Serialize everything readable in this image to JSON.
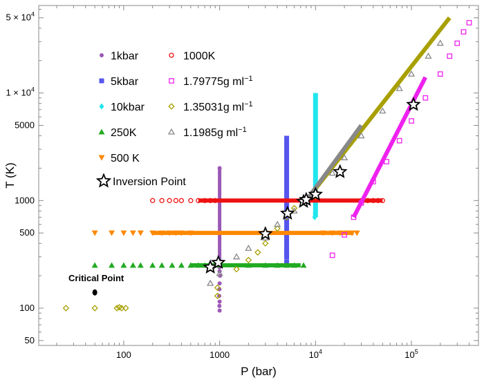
{
  "chart_data": {
    "type": "scatter",
    "xlabel": "P (bar)",
    "ylabel": "T (K)",
    "xscale": "log",
    "yscale": "log",
    "xlim": [
      13,
      500000
    ],
    "ylim": [
      45,
      65000
    ],
    "x_ticks": [
      {
        "value": 100,
        "label": "100"
      },
      {
        "value": 1000,
        "label": "1000"
      },
      {
        "value": 10000,
        "base": "10",
        "exp": "4"
      },
      {
        "value": 100000,
        "base": "10",
        "exp": "5"
      }
    ],
    "y_ticks": [
      {
        "value": 50,
        "label": "50"
      },
      {
        "value": 100,
        "label": "100"
      },
      {
        "value": 500,
        "label": "500"
      },
      {
        "value": 1000,
        "label": "1000"
      },
      {
        "value": 5000,
        "label": "5000"
      },
      {
        "value": 10000,
        "label": "1 × 10",
        "exp": "4"
      },
      {
        "value": 50000,
        "label": "5 × 10",
        "exp": "4"
      }
    ],
    "legend": {
      "placement": "top-left",
      "columns": 2
    },
    "series": [
      {
        "name": "1kbar",
        "color": "#9b59b6",
        "marker": "circle",
        "legend_col": 0,
        "points": [
          [
            1000,
            95
          ],
          [
            995,
            105
          ],
          [
            1000,
            115
          ],
          [
            990,
            130
          ],
          [
            995,
            150
          ],
          [
            1000,
            170
          ],
          [
            1010,
            200
          ],
          [
            1000,
            220
          ],
          [
            995,
            240
          ],
          [
            1000,
            260
          ],
          [
            1000,
            2000
          ]
        ],
        "vline": {
          "x": 1000,
          "y0": 240,
          "y1": 2000
        }
      },
      {
        "name": "5kbar",
        "color": "#5555ee",
        "marker": "square",
        "legend_col": 0,
        "points": [
          [
            5000,
            270
          ],
          [
            5000,
            300
          ],
          [
            5000,
            330
          ]
        ],
        "vline": {
          "x": 5000,
          "y0": 300,
          "y1": 4000
        }
      },
      {
        "name": "10kbar",
        "color": "#22e6ee",
        "marker": "diamond",
        "legend_col": 0,
        "points": [
          [
            9800,
            700
          ],
          [
            9900,
            750
          ]
        ],
        "vline": {
          "x": 10000,
          "y0": 700,
          "y1": 10000
        }
      },
      {
        "name": "250K",
        "color": "#22aa22",
        "marker": "triangle",
        "legend_col": 0,
        "points": [
          [
            50,
            250
          ],
          [
            75,
            250
          ],
          [
            100,
            250
          ],
          [
            125,
            250
          ],
          [
            150,
            250
          ],
          [
            200,
            250
          ],
          [
            250,
            250
          ],
          [
            320,
            250
          ],
          [
            400,
            250
          ],
          [
            500,
            250
          ],
          [
            600,
            250
          ],
          [
            700,
            250
          ],
          [
            800,
            250
          ],
          [
            2000,
            250
          ],
          [
            3000,
            250
          ],
          [
            4000,
            250
          ],
          [
            5000,
            250
          ],
          [
            6000,
            250
          ],
          [
            7500,
            250
          ]
        ],
        "hline": {
          "y": 250,
          "x0": 500,
          "x1": 7000
        }
      },
      {
        "name": "500 K",
        "color": "#ff8800",
        "marker": "triangle-down",
        "legend_col": 0,
        "points": [
          [
            50,
            500
          ],
          [
            75,
            500
          ],
          [
            100,
            500
          ],
          [
            125,
            500
          ],
          [
            150,
            500
          ],
          [
            200,
            500
          ],
          [
            250,
            500
          ],
          [
            300,
            500
          ],
          [
            350,
            500
          ],
          [
            400,
            500
          ],
          [
            500,
            500
          ],
          [
            12000,
            500
          ],
          [
            15000,
            500
          ],
          [
            18000,
            500
          ],
          [
            21000,
            500
          ],
          [
            24000,
            500
          ],
          [
            27000,
            500
          ]
        ],
        "hline": {
          "y": 500,
          "x0": 200,
          "x1": 25000
        }
      },
      {
        "name": "1000K",
        "color": "#ee1111",
        "marker": "circle-open",
        "legend_col": 1,
        "points": [
          [
            200,
            1000
          ],
          [
            250,
            1000
          ],
          [
            300,
            1000
          ],
          [
            350,
            1000
          ],
          [
            400,
            1000
          ],
          [
            500,
            1000
          ],
          [
            600,
            1000
          ],
          [
            700,
            1000
          ],
          [
            800,
            1000
          ],
          [
            900,
            1000
          ],
          [
            30000,
            1000
          ],
          [
            35000,
            1000
          ],
          [
            40000,
            1000
          ],
          [
            45000,
            1000
          ],
          [
            50000,
            1000
          ]
        ],
        "hline": {
          "y": 1000,
          "x0": 600,
          "x1": 50000
        }
      },
      {
        "name": "1.79775g ml⁻¹",
        "color": "#ee22ee",
        "marker": "square-open",
        "legend_col": 1,
        "points": [
          [
            15000,
            310
          ],
          [
            20000,
            480
          ],
          [
            25000,
            700
          ],
          [
            30000,
            950
          ],
          [
            40000,
            1500
          ],
          [
            55000,
            2300
          ],
          [
            75000,
            3600
          ],
          [
            100000,
            5500
          ],
          [
            140000,
            9000
          ],
          [
            200000,
            15000
          ],
          [
            250000,
            22000
          ],
          [
            300000,
            29000
          ],
          [
            350000,
            37000
          ],
          [
            400000,
            45000
          ]
        ],
        "trend": {
          "x0": 25000,
          "y0": 700,
          "x1": 140000,
          "y1": 14000
        }
      },
      {
        "name": "1.35031g ml⁻¹",
        "color": "#a8a000",
        "marker": "diamond-open",
        "legend_col": 1,
        "points": [
          [
            25,
            100
          ],
          [
            50,
            100
          ],
          [
            85,
            100
          ],
          [
            90,
            102
          ],
          [
            95,
            100
          ],
          [
            105,
            100
          ],
          [
            950,
            130
          ],
          [
            950,
            155
          ],
          [
            1500,
            230
          ],
          [
            2000,
            280
          ],
          [
            2500,
            330
          ],
          [
            3000,
            400
          ],
          [
            4000,
            550
          ],
          [
            5000,
            700
          ],
          [
            6000,
            850
          ],
          [
            8000,
            1000
          ],
          [
            10000,
            1100
          ]
        ],
        "trend": {
          "x0": 8000,
          "y0": 1000,
          "x1": 250000,
          "y1": 50000
        }
      },
      {
        "name": "1.1985g ml⁻¹",
        "color": "#888888",
        "marker": "triangle-open",
        "legend_col": 1,
        "points": [
          [
            800,
            170
          ],
          [
            1000,
            210
          ],
          [
            1500,
            300
          ],
          [
            2000,
            360
          ],
          [
            3000,
            450
          ],
          [
            4000,
            600
          ],
          [
            6000,
            800
          ],
          [
            8000,
            1000
          ],
          [
            10000,
            1250
          ],
          [
            15000,
            1800
          ],
          [
            20000,
            2500
          ],
          [
            30000,
            4000
          ],
          [
            50000,
            6800
          ],
          [
            75000,
            11000
          ],
          [
            100000,
            15000
          ],
          [
            150000,
            22000
          ],
          [
            200000,
            29000
          ]
        ],
        "trend": {
          "x0": 8000,
          "y0": 1000,
          "x1": 30000,
          "y1": 5000
        }
      },
      {
        "name": "Inversion Point",
        "color": "#000000",
        "marker": "star",
        "legend_col": 0,
        "points": [
          [
            800,
            240
          ],
          [
            970,
            265
          ],
          [
            3000,
            490
          ],
          [
            5100,
            760
          ],
          [
            7500,
            980
          ],
          [
            8000,
            1020
          ],
          [
            10000,
            1140
          ],
          [
            18000,
            1850
          ],
          [
            105000,
            7800
          ]
        ]
      }
    ],
    "annotations": [
      {
        "text": "Critical Point",
        "x": 50,
        "y": 140,
        "marker_color": "#000000"
      }
    ]
  }
}
